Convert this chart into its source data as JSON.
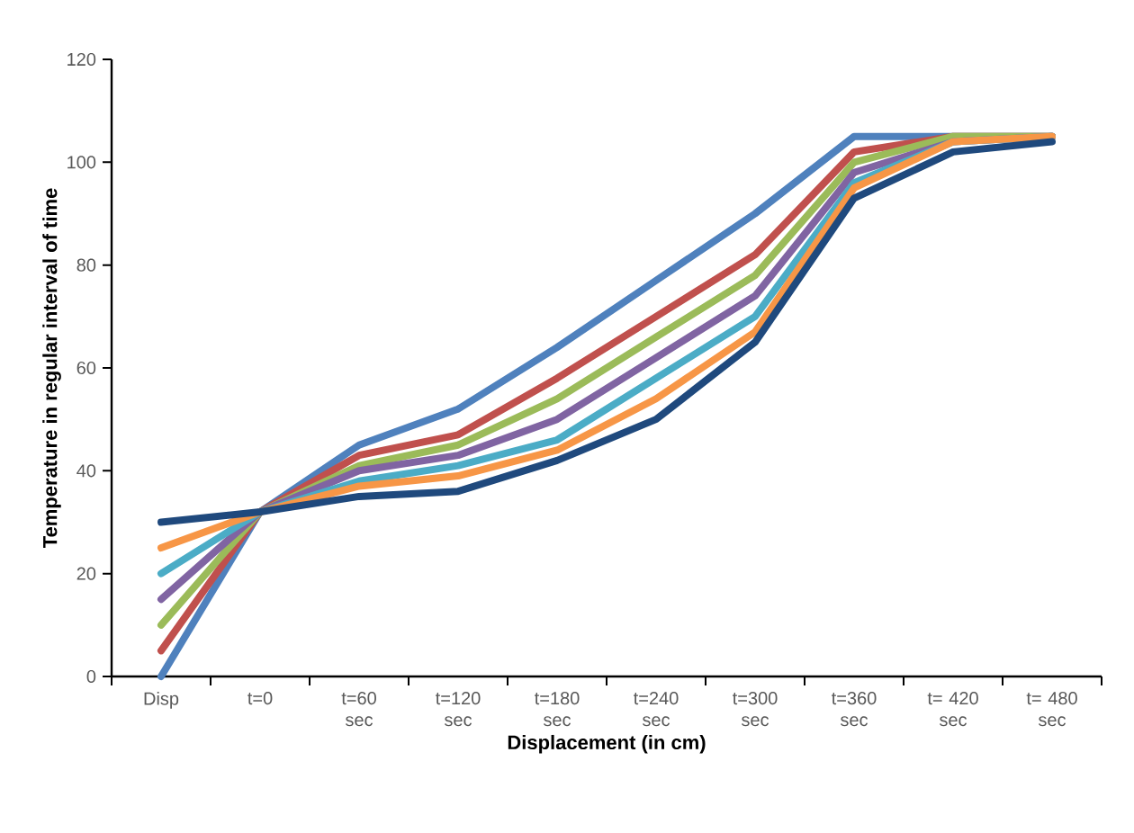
{
  "chart_data": {
    "type": "line",
    "xlabel": "Displacement (in cm)",
    "ylabel": "Temperature in regular interval of time",
    "categories": [
      "Disp",
      "t=0",
      "t=60 sec",
      "t=120 sec",
      "t=180 sec",
      "t=240 sec",
      "t=300 sec",
      "t=360 sec",
      "t= 420 sec",
      "t= 480 sec"
    ],
    "ylim": [
      0,
      120
    ],
    "yticks": [
      0,
      20,
      40,
      60,
      80,
      100,
      120
    ],
    "grid": false,
    "marker": "none",
    "line_style": "solid",
    "series": [
      {
        "color": "#4f81bd",
        "values": [
          0,
          32,
          45,
          52,
          64,
          77,
          90,
          105,
          105,
          105
        ]
      },
      {
        "color": "#c0504d",
        "values": [
          5,
          32,
          43,
          47,
          58,
          70,
          82,
          102,
          105,
          105
        ]
      },
      {
        "color": "#9bbb59",
        "values": [
          10,
          32,
          41,
          45,
          54,
          66,
          78,
          100,
          105,
          105
        ]
      },
      {
        "color": "#8064a2",
        "values": [
          15,
          32,
          40,
          43,
          50,
          62,
          74,
          98,
          104,
          105
        ]
      },
      {
        "color": "#4bacc6",
        "values": [
          20,
          32,
          38,
          41,
          46,
          58,
          70,
          96,
          104,
          105
        ]
      },
      {
        "color": "#f79646",
        "values": [
          25,
          32,
          37,
          39,
          44,
          54,
          67,
          95,
          104,
          105
        ]
      },
      {
        "color": "#1f497d",
        "values": [
          30,
          32,
          35,
          36,
          42,
          50,
          65,
          93,
          102,
          104
        ]
      }
    ]
  }
}
